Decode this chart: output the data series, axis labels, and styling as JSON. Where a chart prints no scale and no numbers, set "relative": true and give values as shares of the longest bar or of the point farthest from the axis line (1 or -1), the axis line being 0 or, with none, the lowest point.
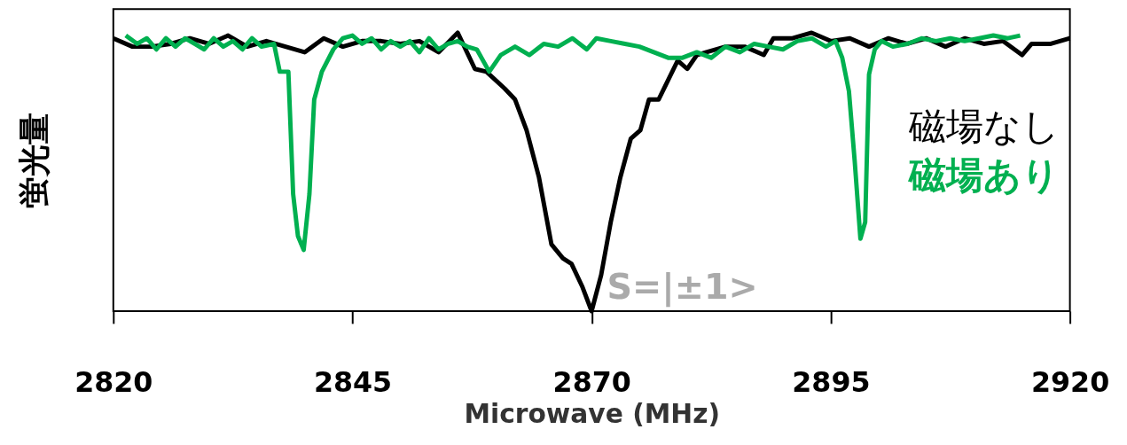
{
  "chart_data": {
    "type": "line",
    "relative": true,
    "xlabel": "Microwave (MHz)",
    "ylabel": "蛍光量",
    "xlim": [
      2820,
      2920
    ],
    "xticks": [
      2820,
      2845,
      2870,
      2895,
      2920
    ],
    "grid": false,
    "legend": "right",
    "marker": "none",
    "line_style": "solid",
    "annotations": [
      "S=|±1>"
    ],
    "series": [
      {
        "name": "磁場なし",
        "color": "#000000",
        "x": [
          2820,
          2822,
          2824,
          2826,
          2828,
          2830,
          2832,
          2834,
          2836,
          2838,
          2840,
          2842,
          2844,
          2846,
          2848,
          2850,
          2852,
          2854,
          2856,
          2857.8,
          2859,
          2860.9,
          2862,
          2863.2,
          2864.5,
          2865.8,
          2867,
          2867.9,
          2869,
          2870,
          2871,
          2872,
          2873,
          2874.1,
          2875.1,
          2876,
          2877,
          2878,
          2879,
          2880,
          2881,
          2882,
          2884,
          2886,
          2888,
          2889,
          2891,
          2893,
          2895,
          2897,
          2899,
          2901,
          2903,
          2905,
          2907,
          2909,
          2911,
          2913,
          2915,
          2916,
          2918,
          2920
        ],
        "values": [
          0.98,
          0.95,
          0.95,
          0.96,
          0.98,
          0.96,
          0.99,
          0.95,
          0.97,
          0.95,
          0.93,
          0.98,
          0.95,
          0.97,
          0.97,
          0.96,
          0.97,
          0.93,
          1.0,
          0.87,
          0.86,
          0.8,
          0.76,
          0.65,
          0.48,
          0.24,
          0.19,
          0.17,
          0.09,
          0,
          0.13,
          0.32,
          0.48,
          0.62,
          0.65,
          0.76,
          0.76,
          0.83,
          0.9,
          0.87,
          0.92,
          0.93,
          0.95,
          0.95,
          0.92,
          0.98,
          0.98,
          1.0,
          0.97,
          0.98,
          0.95,
          0.98,
          0.96,
          0.98,
          0.95,
          0.98,
          0.96,
          0.97,
          0.92,
          0.96,
          0.96,
          0.98
        ]
      },
      {
        "name": "磁場あり",
        "color": "#00b050",
        "x": [
          2821.3,
          2822.5,
          2823.5,
          2824.5,
          2825.5,
          2826.5,
          2827.5,
          2828.5,
          2829.5,
          2830.5,
          2831.5,
          2832.5,
          2833.5,
          2834.5,
          2835.5,
          2836.8,
          2837.4,
          2838.3,
          2838.8,
          2839.3,
          2839.9,
          2840.5,
          2841,
          2841.8,
          2843,
          2844,
          2845,
          2846,
          2847,
          2848,
          2849,
          2850,
          2851,
          2852,
          2853,
          2854,
          2855,
          2856,
          2857,
          2858,
          2859.3,
          2860.5,
          2862,
          2863.5,
          2865,
          2866.5,
          2868,
          2869.5,
          2870.5,
          2872,
          2873.5,
          2875,
          2876.5,
          2878,
          2879.5,
          2881,
          2882.5,
          2884,
          2885.5,
          2887,
          2888.5,
          2890,
          2891.5,
          2893,
          2894.5,
          2895.5,
          2896.2,
          2896.9,
          2897.5,
          2898.1,
          2898.6,
          2899,
          2899.6,
          2900.3,
          2901.5,
          2903,
          2904.5,
          2906,
          2907.5,
          2909,
          2910.5,
          2912,
          2913.5,
          2914.8
        ],
        "values": [
          0.99,
          0.96,
          0.98,
          0.94,
          0.98,
          0.95,
          0.98,
          0.96,
          0.94,
          0.98,
          0.95,
          0.97,
          0.94,
          0.98,
          0.95,
          0.96,
          0.86,
          0.86,
          0.42,
          0.27,
          0.22,
          0.42,
          0.76,
          0.86,
          0.94,
          0.98,
          0.99,
          0.96,
          0.98,
          0.94,
          0.97,
          0.95,
          0.97,
          0.93,
          0.98,
          0.94,
          0.96,
          0.97,
          0.95,
          0.94,
          0.86,
          0.92,
          0.95,
          0.92,
          0.96,
          0.95,
          0.98,
          0.94,
          0.98,
          0.97,
          0.96,
          0.95,
          0.93,
          0.91,
          0.91,
          0.93,
          0.91,
          0.95,
          0.93,
          0.96,
          0.95,
          0.94,
          0.97,
          0.98,
          0.95,
          0.97,
          0.91,
          0.79,
          0.54,
          0.26,
          0.32,
          0.85,
          0.94,
          0.97,
          0.95,
          0.96,
          0.98,
          0.97,
          0.98,
          0.97,
          0.98,
          0.99,
          0.98,
          0.99
        ]
      }
    ]
  }
}
